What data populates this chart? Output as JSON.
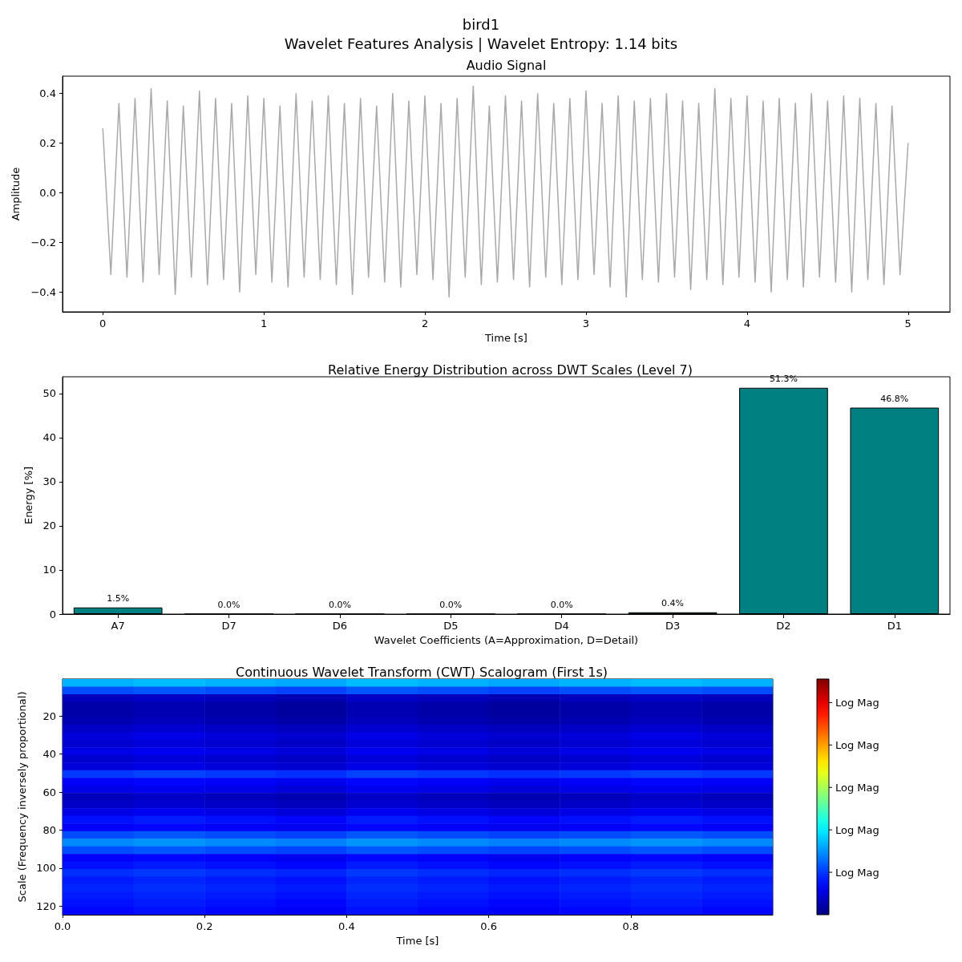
{
  "chart_data": [
    {
      "type": "line",
      "title": "bird1",
      "subtitle": "Wavelet Features Analysis | Wavelet Entropy: 1.14 bits",
      "annotations": [
        "Audio Signal"
      ],
      "xlabel": "Time [s]",
      "ylabel": "Amplitude",
      "x": [
        0,
        0.05,
        0.1,
        0.15,
        0.2,
        0.25,
        0.3,
        0.35,
        0.4,
        0.45,
        0.5,
        0.55,
        0.6,
        0.65,
        0.7,
        0.75,
        0.8,
        0.85,
        0.9,
        0.95,
        1,
        1.05,
        1.1,
        1.15,
        1.2,
        1.25,
        1.3,
        1.35,
        1.4,
        1.45,
        1.5,
        1.55,
        1.6,
        1.65,
        1.7,
        1.75,
        1.8,
        1.85,
        1.9,
        1.95,
        2,
        2.05,
        2.1,
        2.15,
        2.2,
        2.25,
        2.3,
        2.35,
        2.4,
        2.45,
        2.5,
        2.55,
        2.6,
        2.65,
        2.7,
        2.75,
        2.8,
        2.85,
        2.9,
        2.95,
        3,
        3.05,
        3.1,
        3.15,
        3.2,
        3.25,
        3.3,
        3.35,
        3.4,
        3.45,
        3.5,
        3.55,
        3.6,
        3.65,
        3.7,
        3.75,
        3.8,
        3.85,
        3.9,
        3.95,
        4,
        4.05,
        4.1,
        4.15,
        4.2,
        4.25,
        4.3,
        4.35,
        4.4,
        4.45,
        4.5,
        4.55,
        4.6,
        4.65,
        4.7,
        4.75,
        4.8,
        4.85,
        4.9,
        4.95,
        5
      ],
      "series": [
        {
          "color": "#a9a9a9",
          "values": [
            0.26,
            -0.33,
            0.36,
            -0.34,
            0.38,
            -0.36,
            0.42,
            -0.33,
            0.37,
            -0.41,
            0.35,
            -0.34,
            0.41,
            -0.37,
            0.38,
            -0.35,
            0.36,
            -0.4,
            0.39,
            -0.33,
            0.38,
            -0.36,
            0.35,
            -0.38,
            0.4,
            -0.34,
            0.37,
            -0.35,
            0.39,
            -0.37,
            0.36,
            -0.41,
            0.38,
            -0.34,
            0.35,
            -0.36,
            0.4,
            -0.38,
            0.37,
            -0.33,
            0.39,
            -0.35,
            0.36,
            -0.42,
            0.38,
            -0.34,
            0.43,
            -0.37,
            0.35,
            -0.36,
            0.39,
            -0.35,
            0.37,
            -0.38,
            0.4,
            -0.34,
            0.36,
            -0.37,
            0.38,
            -0.35,
            0.41,
            -0.33,
            0.36,
            -0.38,
            0.39,
            -0.42,
            0.37,
            -0.35,
            0.38,
            -0.36,
            0.4,
            -0.34,
            0.37,
            -0.39,
            0.36,
            -0.35,
            0.42,
            -0.37,
            0.38,
            -0.34,
            0.39,
            -0.36,
            0.37,
            -0.4,
            0.38,
            -0.35,
            0.36,
            -0.38,
            0.4,
            -0.34,
            0.37,
            -0.36,
            0.39,
            -0.4,
            0.38,
            -0.35,
            0.36,
            -0.37,
            0.35,
            -0.33,
            0.2
          ]
        }
      ],
      "xlim": [
        -0.25,
        5.26
      ],
      "xticks": [
        0,
        1,
        2,
        3,
        4,
        5
      ],
      "ylim": [
        -0.48,
        0.47
      ],
      "yticks": [
        {
          "value": -0.4,
          "label": "−0.4"
        },
        {
          "value": -0.2,
          "label": "−0.2"
        },
        {
          "value": 0,
          "label": "0.0"
        },
        {
          "value": 0.2,
          "label": "0.2"
        },
        {
          "value": 0.4,
          "label": "0.4"
        }
      ]
    },
    {
      "type": "bar",
      "title": "Relative Energy Distribution across DWT Scales (Level 7)",
      "xlabel": "Wavelet Coefficients (A=Approximation, D=Detail)",
      "ylabel": "Energy [%]",
      "categories": [
        "A7",
        "D7",
        "D6",
        "D5",
        "D4",
        "D3",
        "D2",
        "D1"
      ],
      "values": [
        1.5,
        0.0,
        0.0,
        0.0,
        0.0,
        0.4,
        51.3,
        46.8
      ],
      "color": "#008080",
      "value_labels": [
        "1.5%",
        "0.0%",
        "0.0%",
        "0.0%",
        "0.0%",
        "0.4%",
        "51.3%",
        "46.8%"
      ],
      "ylim": [
        0,
        53.8
      ],
      "yticks": [
        0,
        10,
        20,
        30,
        40,
        50
      ]
    },
    {
      "type": "heatmap",
      "title": "Continuous Wavelet Transform (CWT) Scalogram (First 1s)",
      "xlabel": "Time [s]",
      "ylabel": "Scale (Frequency inversely proportional)",
      "x": [
        0.05,
        0.15,
        0.25,
        0.35,
        0.45,
        0.55,
        0.65,
        0.75,
        0.85,
        0.95
      ],
      "y": [
        2.5,
        6.5,
        10.5,
        14.5,
        18.5,
        22.5,
        26.5,
        30.5,
        34.5,
        38.5,
        42.5,
        46.5,
        50.5,
        54.5,
        58.5,
        62.5,
        66.5,
        70.5,
        74.5,
        78.5,
        82.5,
        86.5,
        90.5,
        94.5,
        98.5,
        102.5,
        106.5,
        110.5,
        114.5,
        118.5,
        122.5
      ],
      "cells": [
        [
          0.3,
          0.31,
          0.3,
          0.29,
          0.31,
          0.3,
          0.29,
          0.3,
          0.31,
          0.3
        ],
        [
          0.2,
          0.21,
          0.2,
          0.19,
          0.21,
          0.2,
          0.19,
          0.2,
          0.21,
          0.2
        ],
        [
          0.06,
          0.07,
          0.06,
          0.05,
          0.07,
          0.06,
          0.05,
          0.06,
          0.07,
          0.06
        ],
        [
          0.04,
          0.05,
          0.04,
          0.03,
          0.05,
          0.04,
          0.03,
          0.04,
          0.05,
          0.04
        ],
        [
          0.04,
          0.05,
          0.04,
          0.03,
          0.05,
          0.04,
          0.03,
          0.04,
          0.05,
          0.04
        ],
        [
          0.05,
          0.06,
          0.05,
          0.04,
          0.06,
          0.05,
          0.04,
          0.05,
          0.06,
          0.05
        ],
        [
          0.07,
          0.08,
          0.07,
          0.06,
          0.08,
          0.07,
          0.06,
          0.07,
          0.08,
          0.07
        ],
        [
          0.09,
          0.1,
          0.09,
          0.08,
          0.1,
          0.09,
          0.08,
          0.09,
          0.1,
          0.09
        ],
        [
          0.08,
          0.09,
          0.08,
          0.07,
          0.09,
          0.08,
          0.07,
          0.08,
          0.09,
          0.08
        ],
        [
          0.1,
          0.11,
          0.1,
          0.09,
          0.11,
          0.1,
          0.09,
          0.1,
          0.11,
          0.1
        ],
        [
          0.08,
          0.09,
          0.08,
          0.07,
          0.09,
          0.08,
          0.07,
          0.08,
          0.09,
          0.08
        ],
        [
          0.09,
          0.1,
          0.09,
          0.08,
          0.1,
          0.09,
          0.08,
          0.09,
          0.1,
          0.09
        ],
        [
          0.18,
          0.19,
          0.18,
          0.17,
          0.19,
          0.18,
          0.17,
          0.18,
          0.19,
          0.18
        ],
        [
          0.12,
          0.13,
          0.12,
          0.11,
          0.13,
          0.12,
          0.11,
          0.12,
          0.13,
          0.12
        ],
        [
          0.1,
          0.11,
          0.1,
          0.09,
          0.11,
          0.1,
          0.09,
          0.1,
          0.11,
          0.1
        ],
        [
          0.06,
          0.07,
          0.06,
          0.05,
          0.07,
          0.06,
          0.05,
          0.06,
          0.07,
          0.06
        ],
        [
          0.07,
          0.08,
          0.07,
          0.06,
          0.08,
          0.07,
          0.06,
          0.07,
          0.08,
          0.07
        ],
        [
          0.1,
          0.11,
          0.1,
          0.09,
          0.11,
          0.1,
          0.09,
          0.1,
          0.11,
          0.1
        ],
        [
          0.14,
          0.15,
          0.14,
          0.13,
          0.15,
          0.14,
          0.13,
          0.14,
          0.15,
          0.14
        ],
        [
          0.12,
          0.13,
          0.12,
          0.11,
          0.13,
          0.12,
          0.11,
          0.12,
          0.13,
          0.12
        ],
        [
          0.2,
          0.21,
          0.2,
          0.19,
          0.21,
          0.2,
          0.19,
          0.2,
          0.21,
          0.2
        ],
        [
          0.26,
          0.27,
          0.26,
          0.25,
          0.27,
          0.26,
          0.25,
          0.26,
          0.27,
          0.26
        ],
        [
          0.2,
          0.21,
          0.2,
          0.19,
          0.21,
          0.2,
          0.19,
          0.2,
          0.21,
          0.2
        ],
        [
          0.12,
          0.13,
          0.12,
          0.11,
          0.13,
          0.12,
          0.11,
          0.12,
          0.13,
          0.12
        ],
        [
          0.14,
          0.15,
          0.14,
          0.13,
          0.15,
          0.14,
          0.13,
          0.14,
          0.15,
          0.14
        ],
        [
          0.17,
          0.18,
          0.17,
          0.16,
          0.18,
          0.17,
          0.16,
          0.17,
          0.18,
          0.17
        ],
        [
          0.15,
          0.16,
          0.15,
          0.14,
          0.16,
          0.15,
          0.14,
          0.15,
          0.16,
          0.15
        ],
        [
          0.16,
          0.17,
          0.16,
          0.15,
          0.17,
          0.16,
          0.15,
          0.16,
          0.17,
          0.16
        ],
        [
          0.15,
          0.16,
          0.15,
          0.14,
          0.16,
          0.15,
          0.14,
          0.15,
          0.16,
          0.15
        ],
        [
          0.14,
          0.15,
          0.14,
          0.13,
          0.15,
          0.14,
          0.13,
          0.14,
          0.15,
          0.14
        ],
        [
          0.13,
          0.14,
          0.13,
          0.12,
          0.14,
          0.13,
          0.12,
          0.13,
          0.14,
          0.13
        ]
      ],
      "xlim": [
        0,
        1
      ],
      "xticks": [
        {
          "value": 0,
          "label": "0.0"
        },
        {
          "value": 0.2,
          "label": "0.2"
        },
        {
          "value": 0.4,
          "label": "0.4"
        },
        {
          "value": 0.6,
          "label": "0.6"
        },
        {
          "value": 0.8,
          "label": "0.8"
        }
      ],
      "ylim": [
        124.5,
        0.5
      ],
      "yticks": [
        20,
        40,
        60,
        80,
        100,
        120
      ],
      "clim": [
        0,
        1
      ],
      "cticks": [
        {
          "value": 0.18,
          "label": "Log Mag"
        },
        {
          "value": 0.36,
          "label": "Log Mag"
        },
        {
          "value": 0.54,
          "label": "Log Mag"
        },
        {
          "value": 0.72,
          "label": "Log Mag"
        },
        {
          "value": 0.9,
          "label": "Log Mag"
        }
      ]
    }
  ]
}
